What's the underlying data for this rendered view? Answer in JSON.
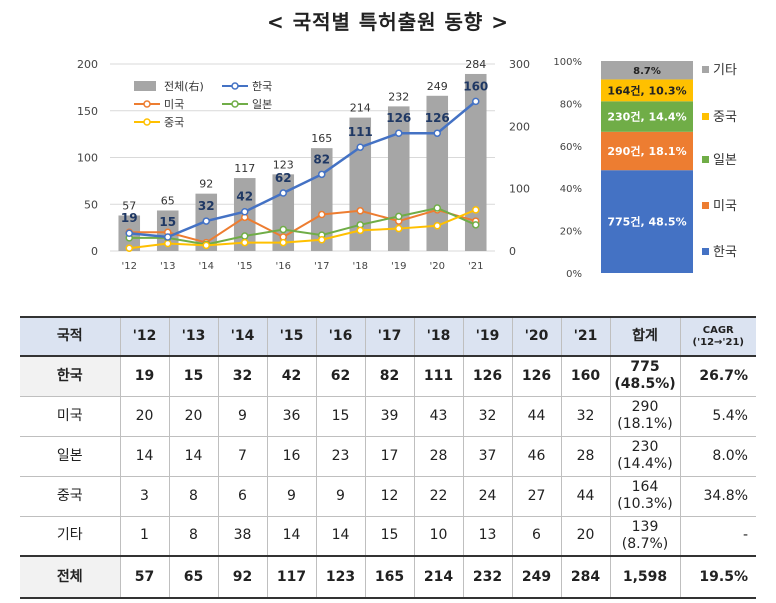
{
  "title": "< 국적별 특허출원 동향 >",
  "chart_data": [
    {
      "type": "bar+line",
      "x": [
        "'12",
        "'13",
        "'14",
        "'15",
        "'16",
        "'17",
        "'18",
        "'19",
        "'20",
        "'21"
      ],
      "y_left_ticks": [
        0,
        50,
        100,
        150,
        200
      ],
      "y_right_ticks": [
        0,
        100,
        200,
        300
      ],
      "ylim_left": [
        0,
        200
      ],
      "ylim_right": [
        0,
        300
      ],
      "bar_series": {
        "name": "전체(右)",
        "axis": "right",
        "color": "#a6a6a6",
        "values": [
          57,
          65,
          92,
          117,
          123,
          165,
          214,
          232,
          249,
          284
        ]
      },
      "line_series": [
        {
          "name": "한국",
          "color": "#4472c4",
          "values": [
            19,
            15,
            32,
            42,
            62,
            82,
            111,
            126,
            126,
            160
          ],
          "labeled": true
        },
        {
          "name": "미국",
          "color": "#ed7d31",
          "values": [
            20,
            20,
            9,
            36,
            15,
            39,
            43,
            32,
            44,
            32
          ],
          "labeled": false
        },
        {
          "name": "일본",
          "color": "#70ad47",
          "values": [
            14,
            14,
            7,
            16,
            23,
            17,
            28,
            37,
            46,
            28
          ],
          "labeled": false
        },
        {
          "name": "중국",
          "color": "#ffc000",
          "values": [
            3,
            8,
            6,
            9,
            9,
            12,
            22,
            24,
            27,
            44
          ],
          "labeled": false
        }
      ],
      "legend_position": "top-left",
      "grid": true
    },
    {
      "type": "stacked-bar",
      "y_ticks": [
        "0%",
        "20%",
        "40%",
        "60%",
        "80%",
        "100%"
      ],
      "segments": [
        {
          "name": "한국",
          "label": "775건, 48.5%",
          "value": 48.5,
          "color": "#4472c4"
        },
        {
          "name": "미국",
          "label": "290건, 18.1%",
          "value": 18.1,
          "color": "#ed7d31"
        },
        {
          "name": "일본",
          "label": "230건, 14.4%",
          "value": 14.4,
          "color": "#70ad47"
        },
        {
          "name": "중국",
          "label": "164건, 10.3%",
          "value": 10.3,
          "color": "#ffc000"
        },
        {
          "name": "기타",
          "label": "8.7%",
          "value": 8.7,
          "color": "#a6a6a6"
        }
      ],
      "legend_position": "right"
    }
  ],
  "table": {
    "headers": [
      "국적",
      "'12",
      "'13",
      "'14",
      "'15",
      "'16",
      "'17",
      "'18",
      "'19",
      "'20",
      "'21",
      "합계",
      "CAGR\n('12→'21)"
    ],
    "rows": [
      {
        "name": "한국",
        "values": [
          "19",
          "15",
          "32",
          "42",
          "62",
          "82",
          "111",
          "126",
          "126",
          "160"
        ],
        "total": "775",
        "pct": "(48.5%)",
        "cagr": "26.7%"
      },
      {
        "name": "미국",
        "values": [
          "20",
          "20",
          "9",
          "36",
          "15",
          "39",
          "43",
          "32",
          "44",
          "32"
        ],
        "total": "290",
        "pct": "(18.1%)",
        "cagr": "5.4%"
      },
      {
        "name": "일본",
        "values": [
          "14",
          "14",
          "7",
          "16",
          "23",
          "17",
          "28",
          "37",
          "46",
          "28"
        ],
        "total": "230",
        "pct": "(14.4%)",
        "cagr": "8.0%"
      },
      {
        "name": "중국",
        "values": [
          "3",
          "8",
          "6",
          "9",
          "9",
          "12",
          "22",
          "24",
          "27",
          "44"
        ],
        "total": "164",
        "pct": "(10.3%)",
        "cagr": "34.8%"
      },
      {
        "name": "기타",
        "values": [
          "1",
          "8",
          "38",
          "14",
          "14",
          "15",
          "10",
          "13",
          "6",
          "20"
        ],
        "total": "139",
        "pct": "(8.7%)",
        "cagr": "-"
      }
    ],
    "footer": {
      "name": "전체",
      "values": [
        "57",
        "65",
        "92",
        "117",
        "123",
        "165",
        "214",
        "232",
        "249",
        "284"
      ],
      "total": "1,598",
      "cagr": "19.5%"
    }
  }
}
